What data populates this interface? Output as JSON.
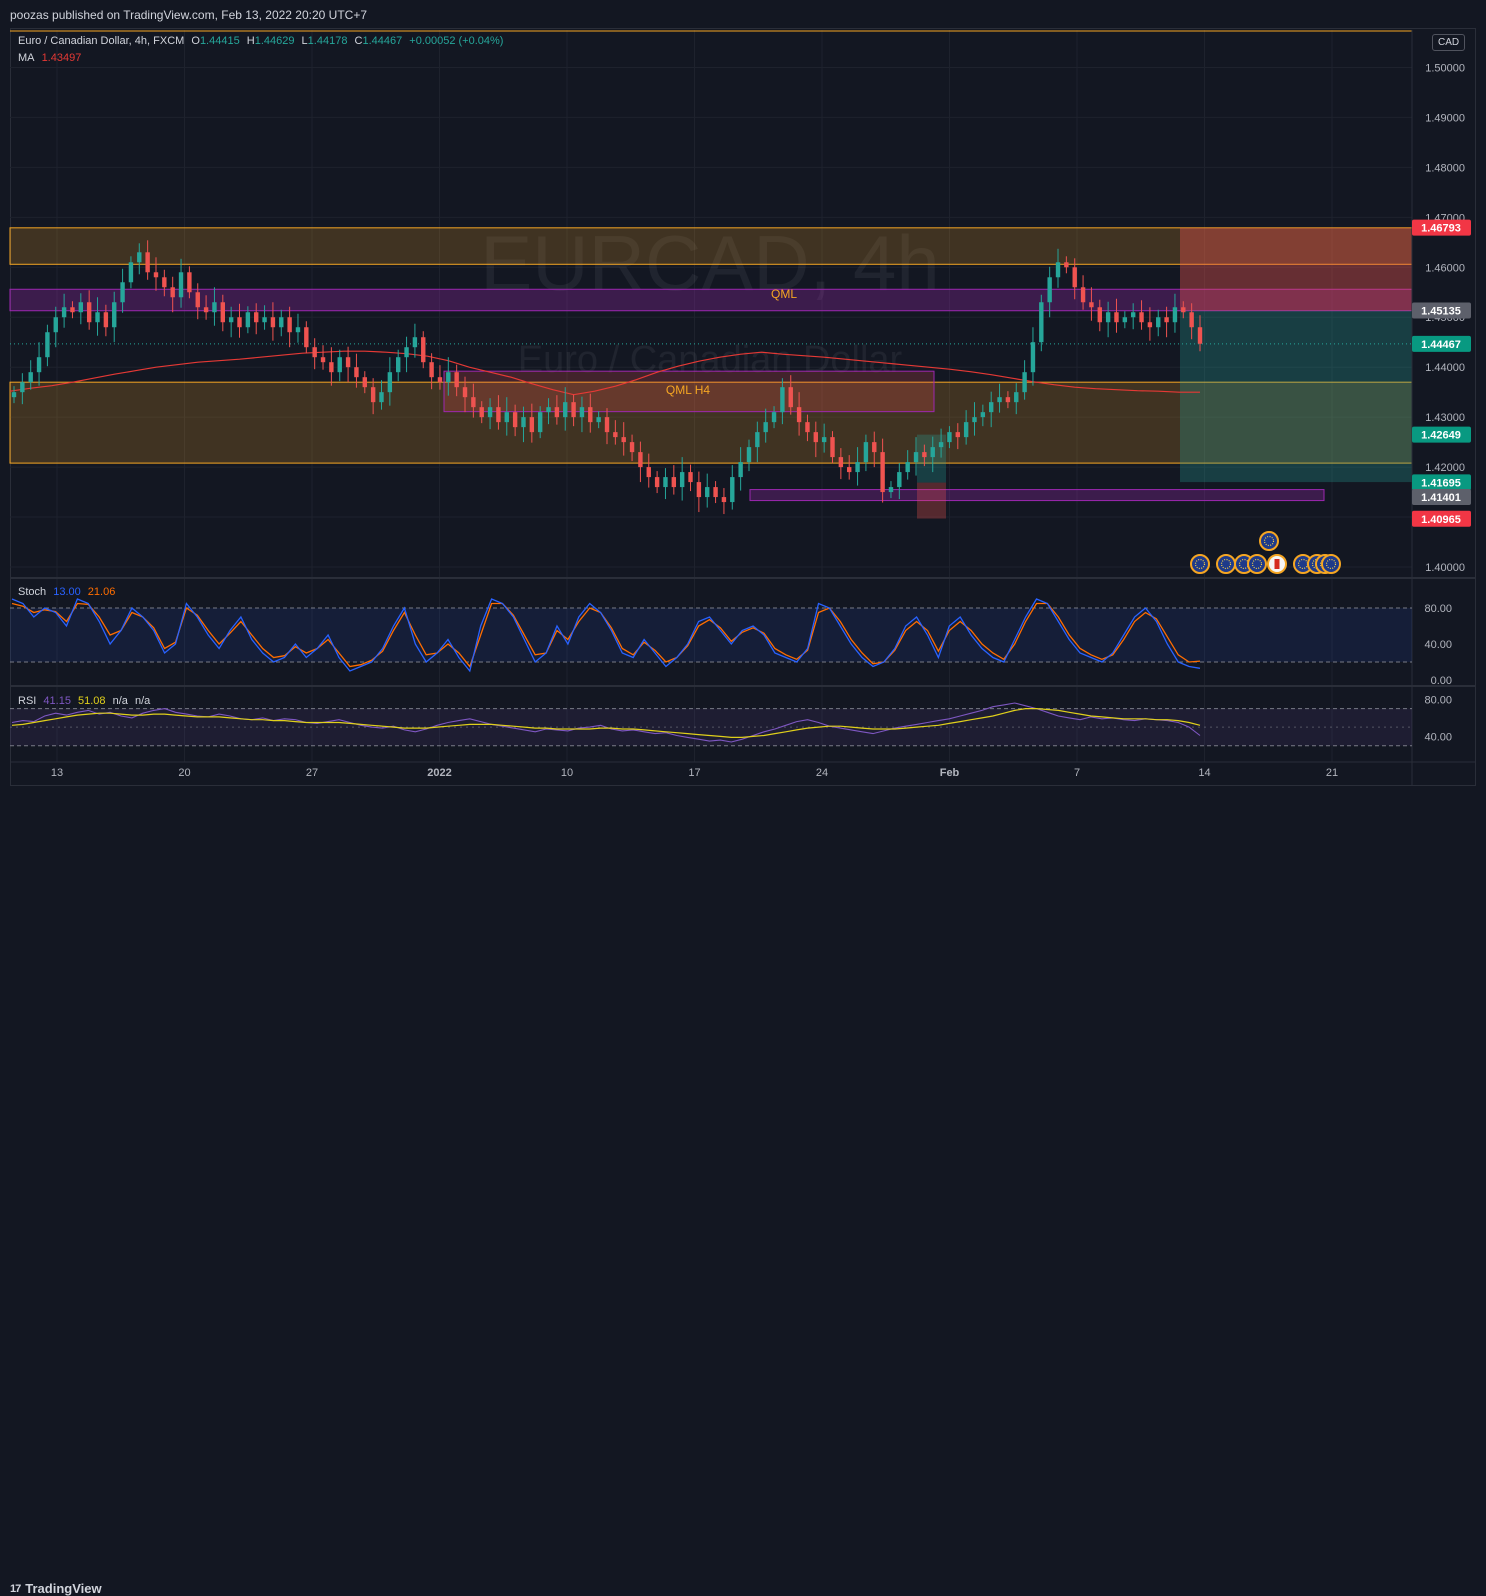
{
  "header": {
    "published": "poozas published on TradingView.com, Feb 13, 2022 20:20 UTC+7"
  },
  "brand": {
    "logo": "17",
    "name": "TradingView"
  },
  "symbol": {
    "name": "Euro / Canadian Dollar, 4h, FXCM",
    "o_label": "O",
    "o": "1.44415",
    "h_label": "H",
    "h": "1.44629",
    "l_label": "L",
    "l": "1.44178",
    "c_label": "C",
    "c": "1.44467",
    "change": "+0.00052 (+0.04%)",
    "ma_label": "MA",
    "ma_value": "1.43497",
    "watermark_ticker": "EURCAD, 4h",
    "watermark_name": "Euro / Canadian Dollar",
    "currency": "CAD"
  },
  "colors": {
    "up": "#26a69a",
    "down": "#ef5350",
    "ma": "#e53935",
    "zone_orange": "#f5a623",
    "qml_purple": "#9c27b0",
    "stoch_k": "#2962ff",
    "stoch_d": "#ff6d00",
    "rsi": "#7e57c2",
    "rsi_ma": "#e0d01b",
    "background": "#131722",
    "grid": "#1e222d"
  },
  "zones": {
    "qml_label": "QML",
    "qml_h4_label": "QML H4"
  },
  "stoch": {
    "label": "Stoch",
    "k": "13.00",
    "d": "21.06"
  },
  "rsi": {
    "label": "RSI",
    "value": "41.15",
    "ma": "51.08",
    "na1": "n/a",
    "na2": "n/a"
  },
  "chart_data": {
    "type": "candlestick",
    "price_axis": {
      "ticks": [
        "1.50000",
        "1.49000",
        "1.48000",
        "1.47000",
        "1.46000",
        "1.45000",
        "1.44000",
        "1.43000",
        "1.42000",
        "1.41000",
        "1.40000"
      ],
      "ylim": [
        1.398,
        1.5075
      ]
    },
    "price_labels": [
      {
        "value": "1.46793",
        "color": "#f23645"
      },
      {
        "value": "1.45135",
        "color": "#5d606b"
      },
      {
        "value": "1.44467",
        "color": "#089981"
      },
      {
        "value": "1.42649",
        "color": "#089981"
      },
      {
        "value": "1.41695",
        "color": "#089981"
      },
      {
        "value": "1.41401",
        "color": "#5d606b"
      },
      {
        "value": "1.40965",
        "color": "#f23645"
      }
    ],
    "time_axis": {
      "ticks": [
        "13",
        "20",
        "27",
        "2022",
        "10",
        "17",
        "24",
        "Feb",
        "7",
        "14",
        "21"
      ]
    },
    "close_path": [
      1.435,
      1.437,
      1.439,
      1.442,
      1.447,
      1.45,
      1.452,
      1.451,
      1.453,
      1.449,
      1.451,
      1.448,
      1.453,
      1.457,
      1.461,
      1.463,
      1.459,
      1.458,
      1.456,
      1.454,
      1.459,
      1.455,
      1.452,
      1.451,
      1.453,
      1.449,
      1.45,
      1.448,
      1.451,
      1.449,
      1.45,
      1.448,
      1.45,
      1.447,
      1.448,
      1.444,
      1.442,
      1.441,
      1.439,
      1.442,
      1.44,
      1.438,
      1.436,
      1.433,
      1.435,
      1.439,
      1.442,
      1.444,
      1.446,
      1.441,
      1.438,
      1.437,
      1.439,
      1.436,
      1.434,
      1.432,
      1.43,
      1.432,
      1.429,
      1.431,
      1.428,
      1.43,
      1.427,
      1.431,
      1.432,
      1.43,
      1.433,
      1.43,
      1.432,
      1.429,
      1.43,
      1.427,
      1.426,
      1.425,
      1.423,
      1.42,
      1.418,
      1.416,
      1.418,
      1.416,
      1.419,
      1.417,
      1.414,
      1.416,
      1.414,
      1.413,
      1.418,
      1.421,
      1.424,
      1.427,
      1.429,
      1.431,
      1.436,
      1.432,
      1.429,
      1.427,
      1.425,
      1.426,
      1.422,
      1.42,
      1.419,
      1.421,
      1.425,
      1.423,
      1.415,
      1.416,
      1.419,
      1.421,
      1.423,
      1.422,
      1.424,
      1.425,
      1.427,
      1.426,
      1.429,
      1.43,
      1.431,
      1.433,
      1.434,
      1.433,
      1.435,
      1.439,
      1.445,
      1.453,
      1.458,
      1.461,
      1.46,
      1.456,
      1.453,
      1.452,
      1.449,
      1.451,
      1.449,
      1.45,
      1.451,
      1.449,
      1.448,
      1.45,
      1.449,
      1.452,
      1.451,
      1.448,
      1.4447
    ],
    "ma_path": [
      1.4352,
      1.4358,
      1.4363,
      1.437,
      1.4378,
      1.4386,
      1.4393,
      1.44,
      1.4405,
      1.441,
      1.4413,
      1.4416,
      1.442,
      1.4424,
      1.4428,
      1.443,
      1.4432,
      1.4432,
      1.443,
      1.4427,
      1.4422,
      1.4413,
      1.44,
      1.439,
      1.438,
      1.4367,
      1.4355,
      1.4345,
      1.4352,
      1.4362,
      1.4375,
      1.439,
      1.4402,
      1.4412,
      1.442,
      1.4426,
      1.443,
      1.4426,
      1.4423,
      1.442,
      1.4416,
      1.4412,
      1.4408,
      1.4404,
      1.44,
      1.4396,
      1.4391,
      1.4385,
      1.4378,
      1.4371,
      1.4365,
      1.436,
      1.4357,
      1.4355,
      1.4353,
      1.4352,
      1.435,
      1.435
    ],
    "stoch_axis": {
      "ticks": [
        "80.00",
        "40.00",
        "0.00"
      ]
    },
    "stoch_k_path": [
      90,
      85,
      70,
      80,
      75,
      60,
      90,
      85,
      65,
      40,
      55,
      80,
      70,
      55,
      30,
      40,
      85,
      70,
      50,
      35,
      55,
      70,
      45,
      30,
      20,
      25,
      40,
      25,
      35,
      50,
      25,
      10,
      15,
      20,
      35,
      60,
      80,
      40,
      20,
      30,
      45,
      25,
      10,
      60,
      90,
      85,
      70,
      45,
      20,
      30,
      60,
      40,
      70,
      85,
      75,
      55,
      30,
      25,
      45,
      30,
      15,
      25,
      40,
      65,
      70,
      55,
      40,
      55,
      60,
      50,
      30,
      25,
      20,
      35,
      85,
      80,
      60,
      40,
      25,
      15,
      20,
      35,
      60,
      70,
      50,
      25,
      60,
      70,
      50,
      35,
      25,
      20,
      45,
      70,
      90,
      85,
      65,
      45,
      30,
      25,
      20,
      30,
      50,
      70,
      80,
      65,
      40,
      20,
      15,
      13
    ],
    "stoch_d_path": [
      85,
      82,
      75,
      78,
      76,
      65,
      85,
      84,
      70,
      50,
      55,
      75,
      70,
      58,
      35,
      42,
      80,
      72,
      55,
      40,
      52,
      65,
      50,
      35,
      25,
      27,
      37,
      30,
      35,
      45,
      30,
      15,
      17,
      22,
      32,
      55,
      75,
      50,
      28,
      30,
      40,
      30,
      15,
      50,
      85,
      85,
      72,
      50,
      28,
      30,
      55,
      45,
      65,
      80,
      75,
      58,
      35,
      28,
      42,
      33,
      20,
      25,
      38,
      60,
      67,
      58,
      43,
      53,
      58,
      52,
      35,
      28,
      23,
      33,
      75,
      80,
      65,
      45,
      30,
      18,
      20,
      33,
      55,
      65,
      55,
      32,
      55,
      65,
      55,
      40,
      30,
      23,
      40,
      65,
      85,
      85,
      70,
      50,
      35,
      28,
      23,
      28,
      45,
      65,
      75,
      68,
      48,
      28,
      20,
      21
    ],
    "rsi_axis": {
      "ticks": [
        "80.00",
        "40.00"
      ]
    },
    "rsi_path": [
      55,
      57,
      56,
      62,
      65,
      63,
      66,
      68,
      64,
      66,
      62,
      60,
      65,
      68,
      70,
      66,
      64,
      62,
      61,
      64,
      62,
      59,
      58,
      60,
      57,
      59,
      58,
      55,
      54,
      56,
      58,
      55,
      52,
      50,
      49,
      51,
      47,
      45,
      48,
      52,
      55,
      57,
      59,
      56,
      53,
      51,
      49,
      47,
      45,
      48,
      47,
      46,
      49,
      50,
      52,
      48,
      46,
      47,
      45,
      43,
      44,
      41,
      39,
      37,
      35,
      36,
      34,
      37,
      41,
      45,
      48,
      52,
      56,
      58,
      55,
      51,
      49,
      47,
      45,
      43,
      46,
      49,
      51,
      53,
      55,
      57,
      59,
      62,
      65,
      68,
      72,
      74,
      76,
      73,
      70,
      66,
      62,
      60,
      58,
      61,
      59,
      60,
      58,
      57,
      59,
      58,
      57,
      55,
      50,
      41
    ],
    "rsi_ma_path": [
      52,
      53,
      55,
      57,
      59,
      61,
      63,
      64,
      65,
      65,
      64,
      63,
      63,
      64,
      64,
      63,
      62,
      61,
      61,
      61,
      60,
      59,
      58,
      58,
      57,
      57,
      56,
      55,
      55,
      55,
      55,
      54,
      53,
      52,
      51,
      50,
      49,
      49,
      49,
      50,
      51,
      52,
      53,
      53,
      53,
      52,
      51,
      50,
      49,
      49,
      48,
      48,
      48,
      48,
      49,
      49,
      48,
      48,
      47,
      46,
      45,
      44,
      43,
      42,
      41,
      40,
      39,
      39,
      40,
      41,
      43,
      45,
      47,
      49,
      50,
      51,
      51,
      50,
      49,
      48,
      48,
      48,
      49,
      50,
      51,
      52,
      54,
      56,
      58,
      60,
      62,
      65,
      68,
      70,
      70,
      69,
      68,
      66,
      64,
      62,
      61,
      60,
      59,
      59,
      59,
      58,
      58,
      57,
      55,
      52
    ]
  }
}
